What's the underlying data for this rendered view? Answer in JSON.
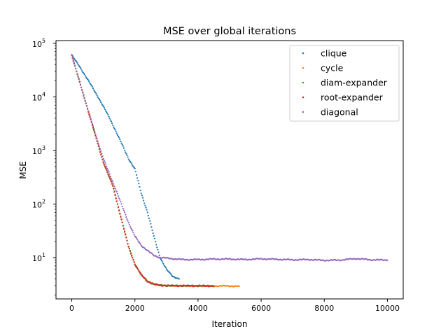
{
  "chart_data": {
    "type": "scatter",
    "title": "MSE over global iterations",
    "xlabel": "Iteration",
    "ylabel": "MSE",
    "xlim": [
      -500,
      10500
    ],
    "ylim_log10": [
      0.23,
      5.05
    ],
    "yscale": "log",
    "xticks": [
      0,
      2000,
      4000,
      6000,
      8000,
      10000
    ],
    "yticks": [
      {
        "base": "10",
        "exp": "1",
        "value": 10
      },
      {
        "base": "10",
        "exp": "2",
        "value": 100
      },
      {
        "base": "10",
        "exp": "3",
        "value": 1000
      },
      {
        "base": "10",
        "exp": "4",
        "value": 10000
      },
      {
        "base": "10",
        "exp": "5",
        "value": 100000
      }
    ],
    "legend_position": "upper right",
    "grid": false,
    "series": [
      {
        "name": "clique",
        "color": "#1f77b4",
        "points": [
          [
            0,
            60000
          ],
          [
            300,
            33000
          ],
          [
            600,
            17000
          ],
          [
            900,
            8500
          ],
          [
            1200,
            4000
          ],
          [
            1500,
            1700
          ],
          [
            1800,
            700
          ],
          [
            2000,
            450
          ],
          [
            2200,
            160
          ],
          [
            2400,
            70
          ],
          [
            2600,
            25
          ],
          [
            2800,
            10
          ],
          [
            3000,
            6
          ],
          [
            3200,
            4.5
          ],
          [
            3400,
            4
          ]
        ]
      },
      {
        "name": "cycle",
        "color": "#ff7f0e",
        "points": [
          [
            0,
            60000
          ],
          [
            500,
            6000
          ],
          [
            1000,
            600
          ],
          [
            1300,
            220
          ],
          [
            1600,
            45
          ],
          [
            1800,
            16
          ],
          [
            2000,
            7.5
          ],
          [
            2200,
            4.8
          ],
          [
            2400,
            3.6
          ],
          [
            2600,
            3.2
          ],
          [
            2800,
            3.05
          ],
          [
            3000,
            3.0
          ],
          [
            3500,
            2.98
          ],
          [
            4000,
            2.97
          ],
          [
            4500,
            2.96
          ],
          [
            5000,
            2.95
          ],
          [
            5300,
            2.93
          ]
        ]
      },
      {
        "name": "diam-expander",
        "color": "#2ca02c",
        "points": [
          [
            0,
            60000
          ],
          [
            500,
            6000
          ],
          [
            1000,
            600
          ],
          [
            1300,
            220
          ],
          [
            1600,
            45
          ],
          [
            1800,
            16
          ],
          [
            2000,
            7.5
          ],
          [
            2200,
            4.8
          ],
          [
            2400,
            3.6
          ],
          [
            2600,
            3.2
          ],
          [
            2800,
            3.05
          ],
          [
            3000,
            3.0
          ],
          [
            3500,
            2.98
          ],
          [
            4000,
            2.97
          ],
          [
            4500,
            2.96
          ]
        ]
      },
      {
        "name": "root-expander",
        "color": "#d62728",
        "points": [
          [
            0,
            60000
          ],
          [
            500,
            6000
          ],
          [
            1000,
            600
          ],
          [
            1300,
            220
          ],
          [
            1600,
            45
          ],
          [
            1800,
            16
          ],
          [
            2000,
            7.5
          ],
          [
            2200,
            4.8
          ],
          [
            2400,
            3.6
          ],
          [
            2600,
            3.2
          ],
          [
            2800,
            3.05
          ],
          [
            3000,
            3.0
          ],
          [
            3500,
            2.98
          ],
          [
            4000,
            2.97
          ],
          [
            4500,
            2.96
          ]
        ]
      },
      {
        "name": "diagonal",
        "color": "#9467bd",
        "points": [
          [
            0,
            60000
          ],
          [
            500,
            6000
          ],
          [
            1000,
            700
          ],
          [
            1300,
            260
          ],
          [
            1600,
            90
          ],
          [
            1800,
            45
          ],
          [
            2000,
            25
          ],
          [
            2200,
            17
          ],
          [
            2400,
            13.5
          ],
          [
            2600,
            11
          ],
          [
            2800,
            10
          ],
          [
            3000,
            9.8
          ],
          [
            3500,
            9.2
          ],
          [
            4000,
            9.2
          ],
          [
            4500,
            9.4
          ],
          [
            5000,
            9.4
          ],
          [
            5500,
            9.2
          ],
          [
            6000,
            9.5
          ],
          [
            6500,
            9.3
          ],
          [
            7000,
            9.1
          ],
          [
            7500,
            9.2
          ],
          [
            8000,
            8.9
          ],
          [
            8500,
            9.0
          ],
          [
            9000,
            9.6
          ],
          [
            9500,
            9.1
          ],
          [
            10000,
            9.0
          ]
        ]
      }
    ]
  }
}
